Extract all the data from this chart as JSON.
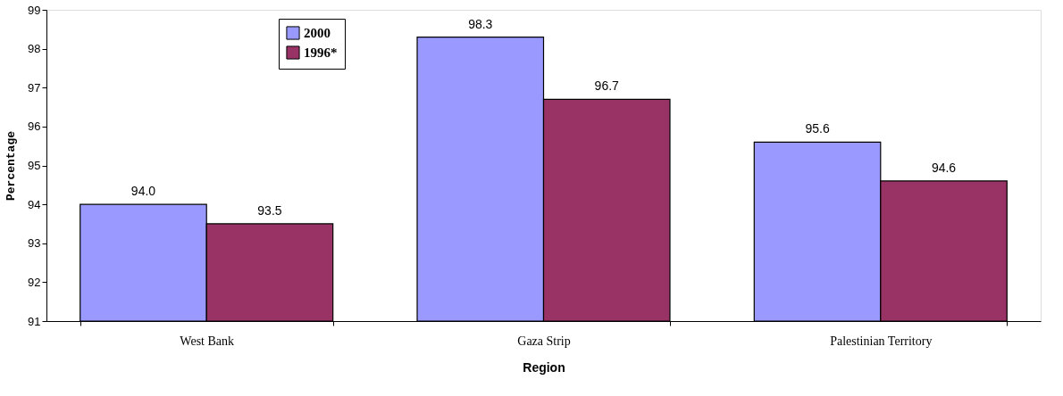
{
  "chart_data": {
    "type": "bar",
    "xlabel": "Region",
    "ylabel": "Percentage",
    "categories": [
      "West Bank",
      "Gaza Strip",
      "Palestinian Territory"
    ],
    "series": [
      {
        "name": "2000",
        "color": "#9999ff",
        "values": [
          94.0,
          98.3,
          95.6
        ]
      },
      {
        "name": "1996*",
        "color": "#993366",
        "values": [
          93.5,
          96.7,
          94.6
        ]
      }
    ],
    "value_labels": [
      [
        "94.0",
        "98.3",
        "95.6"
      ],
      [
        "93.5",
        "96.7",
        "94.6"
      ]
    ],
    "ylim": [
      91,
      99
    ],
    "yticks": [
      91,
      92,
      93,
      94,
      95,
      96,
      97,
      98,
      99
    ],
    "grid": false,
    "legend": "top left"
  }
}
